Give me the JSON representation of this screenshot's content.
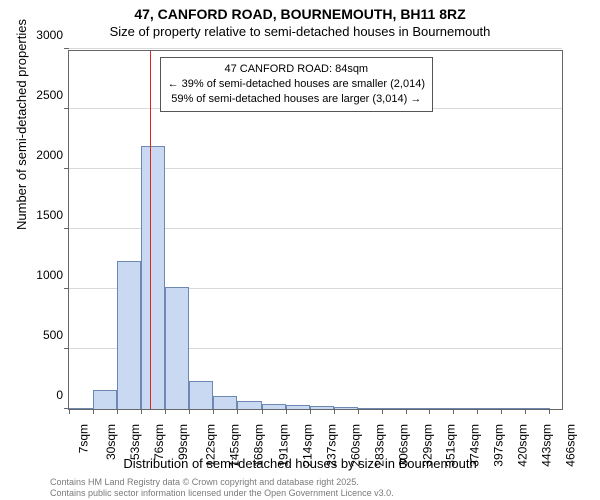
{
  "title": {
    "main": "47, CANFORD ROAD, BOURNEMOUTH, BH11 8RZ",
    "sub": "Size of property relative to semi-detached houses in Bournemouth"
  },
  "chart": {
    "type": "histogram",
    "bar_fill": "#c9d9f2",
    "bar_stroke": "#6d89b3",
    "background_color": "#ffffff",
    "grid_color": "#d9d9d9",
    "border_color": "#666666",
    "marker_color": "#d22",
    "x": {
      "title": "Distribution of semi-detached houses by size in Bournemouth",
      "min": 7,
      "max": 480,
      "ticks": [
        {
          "v": 7,
          "label": "7sqm"
        },
        {
          "v": 30,
          "label": "30sqm"
        },
        {
          "v": 53,
          "label": "53sqm"
        },
        {
          "v": 76,
          "label": "76sqm"
        },
        {
          "v": 99,
          "label": "99sqm"
        },
        {
          "v": 122,
          "label": "122sqm"
        },
        {
          "v": 145,
          "label": "145sqm"
        },
        {
          "v": 168,
          "label": "168sqm"
        },
        {
          "v": 191,
          "label": "191sqm"
        },
        {
          "v": 214,
          "label": "214sqm"
        },
        {
          "v": 237,
          "label": "237sqm"
        },
        {
          "v": 260,
          "label": "260sqm"
        },
        {
          "v": 283,
          "label": "283sqm"
        },
        {
          "v": 306,
          "label": "306sqm"
        },
        {
          "v": 329,
          "label": "329sqm"
        },
        {
          "v": 351,
          "label": "351sqm"
        },
        {
          "v": 374,
          "label": "374sqm"
        },
        {
          "v": 397,
          "label": "397sqm"
        },
        {
          "v": 420,
          "label": "420sqm"
        },
        {
          "v": 443,
          "label": "443sqm"
        },
        {
          "v": 466,
          "label": "466sqm"
        }
      ]
    },
    "y": {
      "title": "Number of semi-detached properties",
      "min": 0,
      "max": 3000,
      "ticks": [
        0,
        500,
        1000,
        1500,
        2000,
        2500,
        3000
      ]
    },
    "bars": [
      {
        "v": 10
      },
      {
        "v": 160
      },
      {
        "v": 1230
      },
      {
        "v": 2190
      },
      {
        "v": 1020
      },
      {
        "v": 230
      },
      {
        "v": 110
      },
      {
        "v": 70
      },
      {
        "v": 40
      },
      {
        "v": 30
      },
      {
        "v": 25
      },
      {
        "v": 15
      },
      {
        "v": 10
      },
      {
        "v": 10
      },
      {
        "v": 5
      },
      {
        "v": 5
      },
      {
        "v": 5
      },
      {
        "v": 3
      },
      {
        "v": 2
      },
      {
        "v": 2
      }
    ],
    "marker": {
      "x": 84
    },
    "annotation": {
      "line1": "47 CANFORD ROAD: 84sqm",
      "line2": "← 39% of semi-detached houses are smaller (2,014)",
      "line3": "59% of semi-detached houses are larger (3,014) →"
    }
  },
  "footer": {
    "line1": "Contains HM Land Registry data © Crown copyright and database right 2025.",
    "line2": "Contains public sector information licensed under the Open Government Licence v3.0."
  },
  "fonts": {
    "title_main_pt": 14,
    "title_sub_pt": 13,
    "axis_title_pt": 13,
    "tick_pt": 12,
    "annotation_pt": 11,
    "footer_pt": 9
  }
}
